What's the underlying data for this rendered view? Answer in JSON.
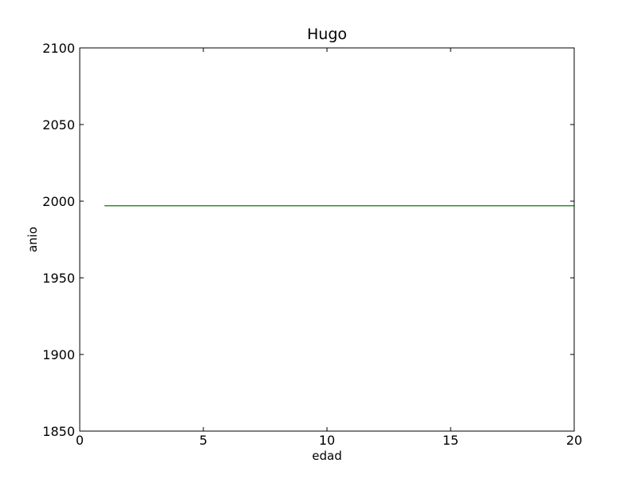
{
  "chart_data": {
    "type": "line",
    "title": "Hugo",
    "xlabel": "edad",
    "ylabel": "anio",
    "xlim": [
      0,
      20
    ],
    "ylim": [
      1850,
      2100
    ],
    "xticks": [
      0,
      5,
      10,
      15,
      20
    ],
    "yticks": [
      1850,
      1900,
      1950,
      2000,
      2050,
      2100
    ],
    "xtick_labels": [
      "0",
      "5",
      "10",
      "15",
      "20"
    ],
    "ytick_labels": [
      "1850",
      "1900",
      "1950",
      "2000",
      "2050",
      "2100"
    ],
    "grid": false,
    "series": [
      {
        "color": "#008000",
        "x": [
          1,
          20
        ],
        "y": [
          1997,
          1997
        ]
      }
    ]
  }
}
